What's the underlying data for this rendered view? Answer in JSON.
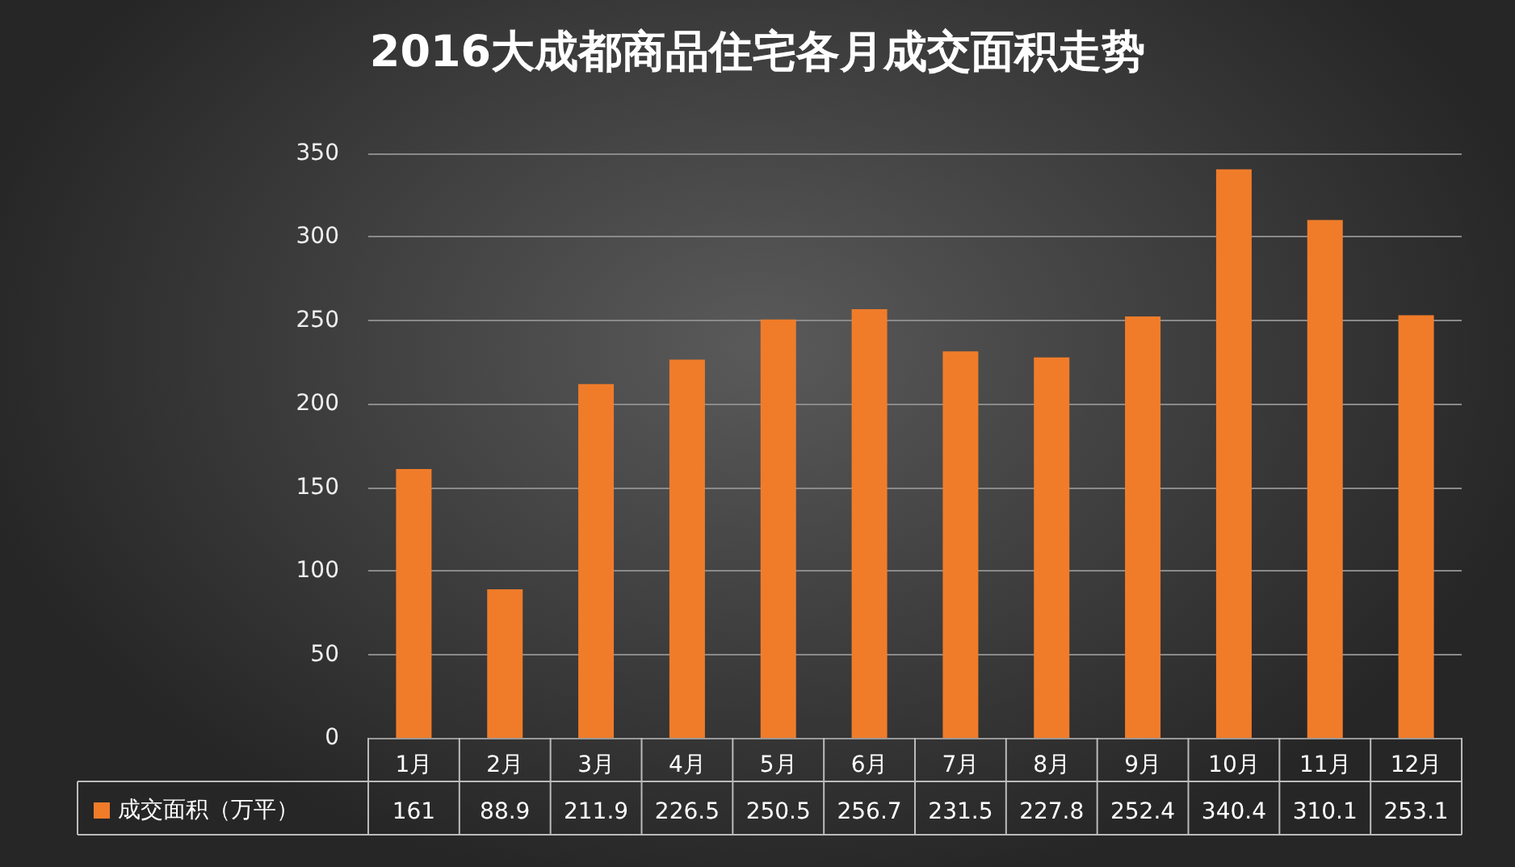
{
  "chart_data": {
    "type": "bar",
    "title": "2016大成都商品住宅各月成交面积走势",
    "categories": [
      "1月",
      "2月",
      "3月",
      "4月",
      "5月",
      "6月",
      "7月",
      "8月",
      "9月",
      "10月",
      "11月",
      "12月"
    ],
    "series": [
      {
        "name": "成交面积（万平）",
        "color": "#f07c2a",
        "values": [
          161,
          88.9,
          211.9,
          226.5,
          250.5,
          256.7,
          231.5,
          227.8,
          252.4,
          340.4,
          310.1,
          253.1
        ]
      }
    ],
    "ylim": [
      0,
      350
    ],
    "yticks": [
      0,
      50,
      100,
      150,
      200,
      250,
      300,
      350
    ],
    "grid": "y",
    "legend": "bottom left",
    "data_labels": true
  }
}
